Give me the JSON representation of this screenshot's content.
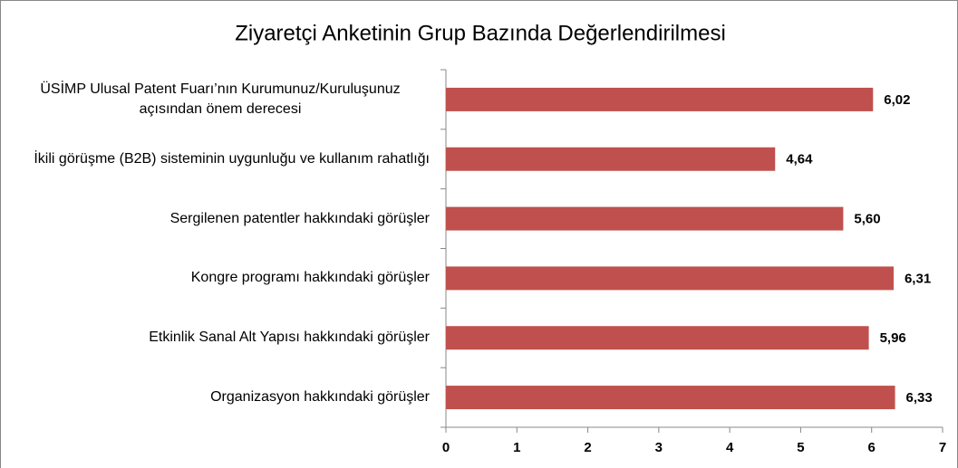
{
  "chart_data": {
    "type": "bar",
    "orientation": "horizontal",
    "title": "Ziyaretçi Anketinin Grup Bazında Değerlendirilmesi",
    "categories": [
      "ÜSİMP Ulusal Patent Fuarı’nın Kurumunuz/Kuruluşunuz açısından önem derecesi",
      "İkili görüşme (B2B) sisteminin uygunluğu ve kullanım rahatlığı",
      "Sergilenen patentler hakkındaki görüşler",
      "Kongre programı hakkındaki görüşler",
      "Etkinlik Sanal Alt Yapısı hakkındaki görüşler",
      "Organizasyon hakkındaki görüşler"
    ],
    "values": [
      6.02,
      4.64,
      5.6,
      6.31,
      5.96,
      6.33
    ],
    "value_labels": [
      "6,02",
      "4,64",
      "5,60",
      "6,31",
      "5,96",
      "6,33"
    ],
    "color": "#c0504d",
    "xlim": [
      0,
      7
    ],
    "xticks": [
      0,
      1,
      2,
      3,
      4,
      5,
      6,
      7
    ],
    "grid": false
  }
}
